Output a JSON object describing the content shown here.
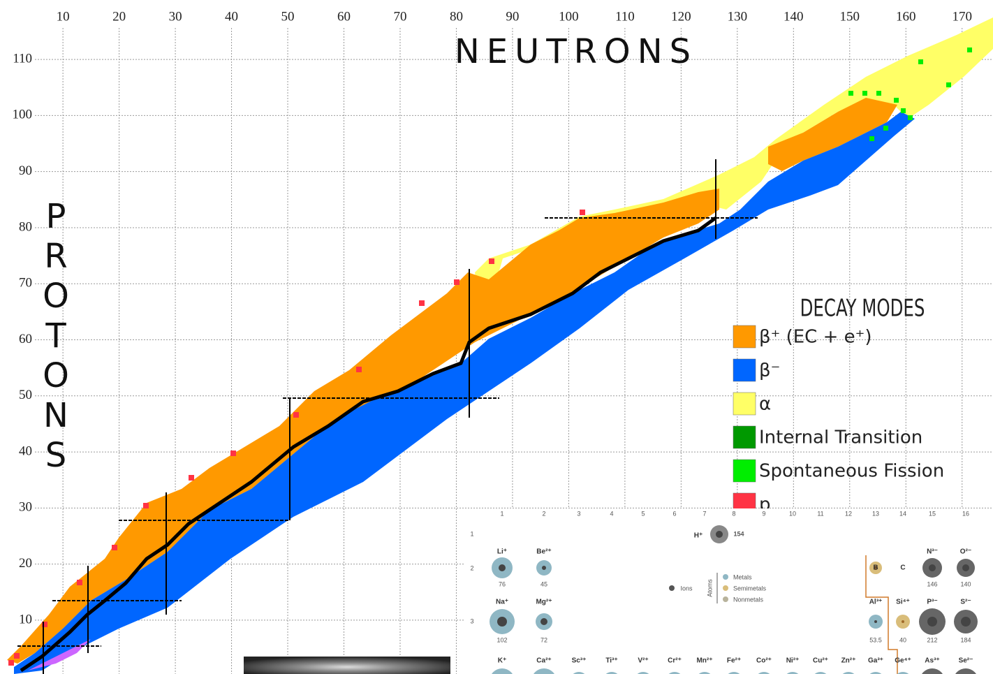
{
  "chart_data": {
    "type": "nuclide-chart",
    "x_label": "NEUTRONS",
    "y_label": "PROTONS",
    "xlim": [
      -1.2,
      175.5
    ],
    "ylim": [
      0.4,
      120.6
    ],
    "xticks": [
      10,
      20,
      30,
      40,
      50,
      60,
      70,
      80,
      90,
      100,
      110,
      120,
      130,
      140,
      150,
      160,
      170
    ],
    "yticks": [
      10,
      20,
      30,
      40,
      50,
      60,
      70,
      80,
      90,
      100,
      110
    ],
    "grid": true,
    "legend": {
      "title": "DECAY MODES",
      "entries": [
        {
          "name": "β⁺ (EC + e⁺)",
          "color": "#ff9900"
        },
        {
          "name": "β⁻",
          "color": "#0066ff"
        },
        {
          "name": "α",
          "color": "#ffff66"
        },
        {
          "name": "Internal Transition",
          "color": "#009900"
        },
        {
          "name": "Spontaneous Fission",
          "color": "#00ee00"
        },
        {
          "name": "p",
          "color": "#ff3344"
        }
      ]
    }
  },
  "periodic_table": {
    "groups": [
      "1",
      "2",
      "3",
      "4",
      "5",
      "6",
      "7",
      "8",
      "9",
      "10",
      "11",
      "12",
      "13",
      "14",
      "15",
      "16"
    ],
    "periods": [
      "1",
      "2",
      "3"
    ],
    "ions": [
      {
        "symbol": "H⁺",
        "radius": 154
      },
      {
        "symbol": "Li⁺",
        "radius": 76
      },
      {
        "symbol": "Be²⁺",
        "radius": 45
      },
      {
        "symbol": "B"
      },
      {
        "symbol": "C"
      },
      {
        "symbol": "N³⁻",
        "radius": 146
      },
      {
        "symbol": "O²⁻",
        "radius": 140
      },
      {
        "symbol": "Na⁺",
        "radius": 102
      },
      {
        "symbol": "Mg²⁺",
        "radius": 72
      },
      {
        "symbol": "Al³⁺",
        "radius": 53.5
      },
      {
        "symbol": "Si⁴⁺",
        "radius": 40
      },
      {
        "symbol": "P³⁻",
        "radius": 212
      },
      {
        "symbol": "S²⁻",
        "radius": 184
      }
    ],
    "bottom_row": [
      "K⁺",
      "Ca²⁺",
      "Sc³⁺",
      "Ti³⁺",
      "V²⁺",
      "Cr²⁺",
      "Mn²⁺",
      "Fe²⁺",
      "Co²⁺",
      "Ni²⁺",
      "Cu²⁺",
      "Zn²⁺",
      "Ga³⁺",
      "Ge⁴⁺",
      "As³⁺",
      "Se²⁻"
    ],
    "key": {
      "ions": "Ions",
      "atoms": "Atoms",
      "metals": "Metals",
      "semimetals": "Semimetals",
      "nonmetals": "Nonmetals"
    }
  }
}
